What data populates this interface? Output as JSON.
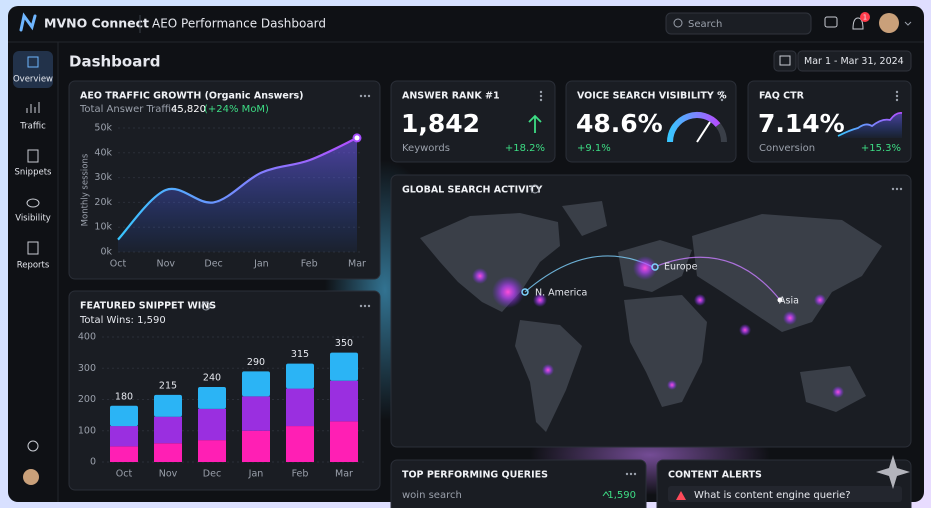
{
  "header": {
    "brand": "MVNO Connect",
    "title": "AEO Performance Dashboard",
    "search_placeholder": "Search",
    "notification_count": "1"
  },
  "sidebar": {
    "items": [
      "Overview",
      "Traffic",
      "Snippets",
      "Visibility",
      "Reports"
    ]
  },
  "page": {
    "title": "Dashboard",
    "date_range": "Mar 1 - Mar 31, 2024"
  },
  "chart_data": [
    {
      "type": "line",
      "title": "AEO TRAFFIC GROWTH (Organic Answers)",
      "total_label": "Total Answer Traffic:",
      "total_value": "45,820",
      "total_change": "(+24% MoM)",
      "y_label": "Monthly sessions",
      "categories": [
        "Oct",
        "Nov",
        "Dec",
        "Jan",
        "Feb",
        "Mar"
      ],
      "values": [
        5000,
        25000,
        20000,
        32000,
        37000,
        46000
      ],
      "color": "#a64dff",
      "ylim": [
        0,
        50000
      ],
      "yticks": [
        {
          "value": 0,
          "label": "0k"
        },
        {
          "value": 10000,
          "label": "10k"
        },
        {
          "value": 20000,
          "label": "20k"
        },
        {
          "value": 30000,
          "label": "30k"
        },
        {
          "value": 40000,
          "label": "40k"
        },
        {
          "value": 50000,
          "label": "50k"
        }
      ],
      "grid": true
    },
    {
      "type": "bar",
      "title": "FEATURED SNIPPET WINS",
      "total_label": "Total Wins: 1,590",
      "categories": [
        "Oct",
        "Nov",
        "Dec",
        "Jan",
        "Feb",
        "Mar"
      ],
      "series": [
        {
          "color": "#ff1fb4",
          "values": [
            50,
            60,
            70,
            100,
            115,
            130
          ]
        },
        {
          "color": "#9a2fe0",
          "values": [
            65,
            85,
            100,
            110,
            120,
            130
          ]
        },
        {
          "color": "#2bb4f5",
          "values": [
            65,
            70,
            70,
            80,
            80,
            90
          ]
        }
      ],
      "totals": [
        180,
        215,
        240,
        290,
        315,
        350
      ],
      "ylim": [
        0,
        400
      ],
      "yticks": [
        0,
        100,
        200,
        300,
        400
      ],
      "grid": true
    }
  ],
  "kpis": [
    {
      "title": "ANSWER RANK #1",
      "value": "1,842",
      "label": "Keywords",
      "change": "+18.2%"
    },
    {
      "title": "VOICE SEARCH VISIBILITY %",
      "value": "48.6%",
      "change": "+9.1%"
    },
    {
      "title": "FAQ CTR",
      "value": "7.14%",
      "label": "Conversion",
      "change": "+15.3%"
    }
  ],
  "map": {
    "title": "GLOBAL SEARCH ACTIVITY",
    "labels": [
      "N. America",
      "Europe",
      "Asia"
    ]
  },
  "queries": {
    "title": "TOP PERFORMING QUERIES",
    "rows": [
      {
        "query": "woin search",
        "change": "1,590"
      }
    ]
  },
  "alerts": {
    "title": "CONTENT ALERTS",
    "items": [
      "What is content engine querie?"
    ]
  }
}
